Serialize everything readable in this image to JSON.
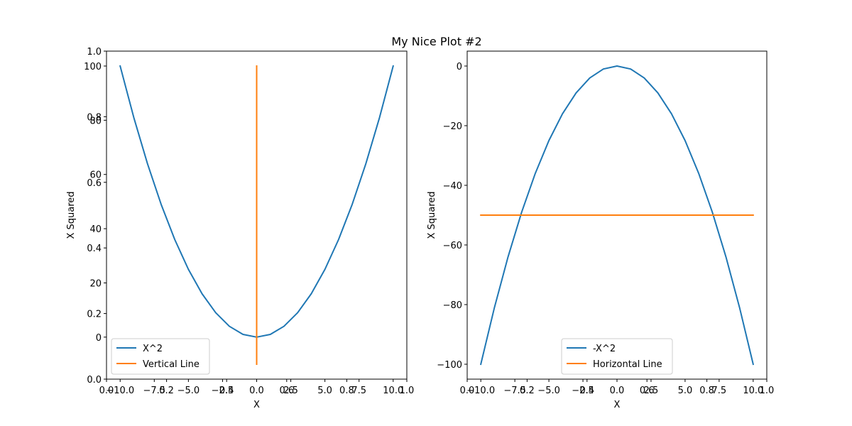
{
  "chart_data": [
    {
      "type": "line",
      "title": "My Nice Plot #2",
      "xlabel": "X",
      "ylabel": "X Squared",
      "xlim": [
        -11,
        11
      ],
      "ylim": [
        -15.5,
        105.5
      ],
      "xticks": [
        -10,
        -7.5,
        -5,
        -2.5,
        0,
        2.5,
        5,
        7.5,
        10
      ],
      "xtick_labels": [
        "−10.0",
        "−7.5",
        "−5.0",
        "−2.5",
        "0.0",
        "2.5",
        "5.0",
        "7.5",
        "10.0"
      ],
      "yticks": [
        0,
        20,
        40,
        60,
        80,
        100
      ],
      "ytick_labels": [
        "0",
        "20",
        "40",
        "60",
        "80",
        "100"
      ],
      "twin_axes": {
        "ticks": [
          0.0,
          0.2,
          0.4,
          0.6,
          0.8,
          1.0
        ],
        "tick_labels": [
          "0.0",
          "0.2",
          "0.4",
          "0.6",
          "0.8",
          "1.0"
        ]
      },
      "legend": {
        "placement": "lower-left"
      },
      "series": [
        {
          "name": "X^2",
          "color": "#1f77b4",
          "x": [
            -10,
            -9,
            -8,
            -7,
            -6,
            -5,
            -4,
            -3,
            -2,
            -1,
            0,
            1,
            2,
            3,
            4,
            5,
            6,
            7,
            8,
            9,
            10
          ],
          "y": [
            100,
            81,
            64,
            49,
            36,
            25,
            16,
            9,
            4,
            1,
            0,
            1,
            4,
            9,
            16,
            25,
            36,
            49,
            64,
            81,
            100
          ]
        },
        {
          "name": "Vertical Line",
          "color": "#ff7f0e",
          "x": [
            0,
            0
          ],
          "y": [
            -10,
            100
          ]
        }
      ]
    },
    {
      "type": "line",
      "xlabel": "X",
      "ylabel": "X Squared",
      "xlim": [
        -11,
        11
      ],
      "ylim": [
        -105,
        5
      ],
      "xticks": [
        -10,
        -7.5,
        -5,
        -2.5,
        0,
        2.5,
        5,
        7.5,
        10
      ],
      "xtick_labels": [
        "−10.0",
        "−7.5",
        "−5.0",
        "−2.5",
        "0.0",
        "2.5",
        "5.0",
        "7.5",
        "10.0"
      ],
      "yticks": [
        -100,
        -80,
        -60,
        -40,
        -20,
        0
      ],
      "ytick_labels": [
        "−100",
        "−80",
        "−60",
        "−40",
        "−20",
        "0"
      ],
      "twin_axes": {
        "ticks": [
          0.0,
          0.2,
          0.4,
          0.6,
          0.8,
          1.0
        ],
        "tick_labels": [
          "0.0",
          "0.2",
          "0.4",
          "0.6",
          "0.8",
          "1.0"
        ]
      },
      "legend": {
        "placement": "lower-center"
      },
      "series": [
        {
          "name": "-X^2",
          "color": "#1f77b4",
          "x": [
            -10,
            -9,
            -8,
            -7,
            -6,
            -5,
            -4,
            -3,
            -2,
            -1,
            0,
            1,
            2,
            3,
            4,
            5,
            6,
            7,
            8,
            9,
            10
          ],
          "y": [
            -100,
            -81,
            -64,
            -49,
            -36,
            -25,
            -16,
            -9,
            -4,
            -1,
            0,
            -1,
            -4,
            -9,
            -16,
            -25,
            -36,
            -49,
            -64,
            -81,
            -100
          ]
        },
        {
          "name": "Horizontal Line",
          "color": "#ff7f0e",
          "x": [
            -10,
            10
          ],
          "y": [
            -50,
            -50
          ]
        }
      ]
    }
  ]
}
